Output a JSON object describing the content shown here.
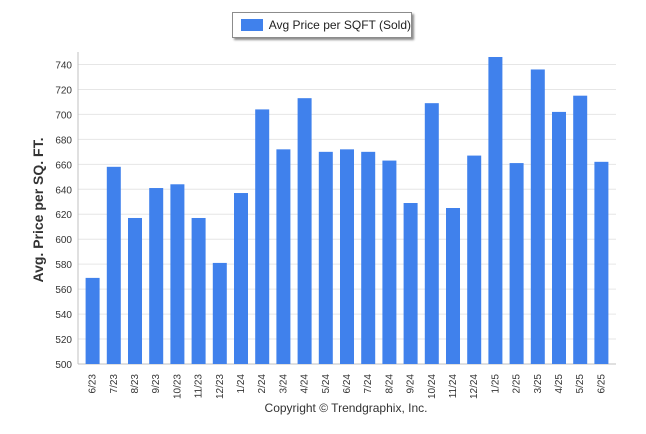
{
  "chart_data": {
    "type": "bar",
    "categories": [
      "6/23",
      "7/23",
      "8/23",
      "9/23",
      "10/23",
      "11/23",
      "12/23",
      "1/24",
      "2/24",
      "3/24",
      "4/24",
      "5/24",
      "6/24",
      "7/24",
      "8/24",
      "9/24",
      "10/24",
      "11/24",
      "12/24",
      "1/25",
      "2/25",
      "3/25",
      "4/25",
      "5/25",
      "6/25"
    ],
    "series": [
      {
        "name": "Avg Price per SQFT (Sold)",
        "values": [
          569,
          658,
          617,
          641,
          644,
          617,
          581,
          637,
          704,
          672,
          713,
          670,
          672,
          670,
          663,
          629,
          709,
          625,
          667,
          746,
          661,
          736,
          702,
          715,
          662
        ]
      }
    ],
    "ylabel": "Avg. Price per SQ. FT.",
    "xlabel": "",
    "ylim": [
      500,
      750
    ],
    "yticks": [
      500,
      520,
      540,
      560,
      580,
      600,
      620,
      640,
      660,
      680,
      700,
      720,
      740
    ],
    "grid": true,
    "legend_position": "top-center",
    "bar_color": "#4081ec"
  },
  "legend": {
    "label": "Avg Price per SQFT (Sold)"
  },
  "footer": {
    "copyright": "Copyright © Trendgraphix, Inc."
  }
}
